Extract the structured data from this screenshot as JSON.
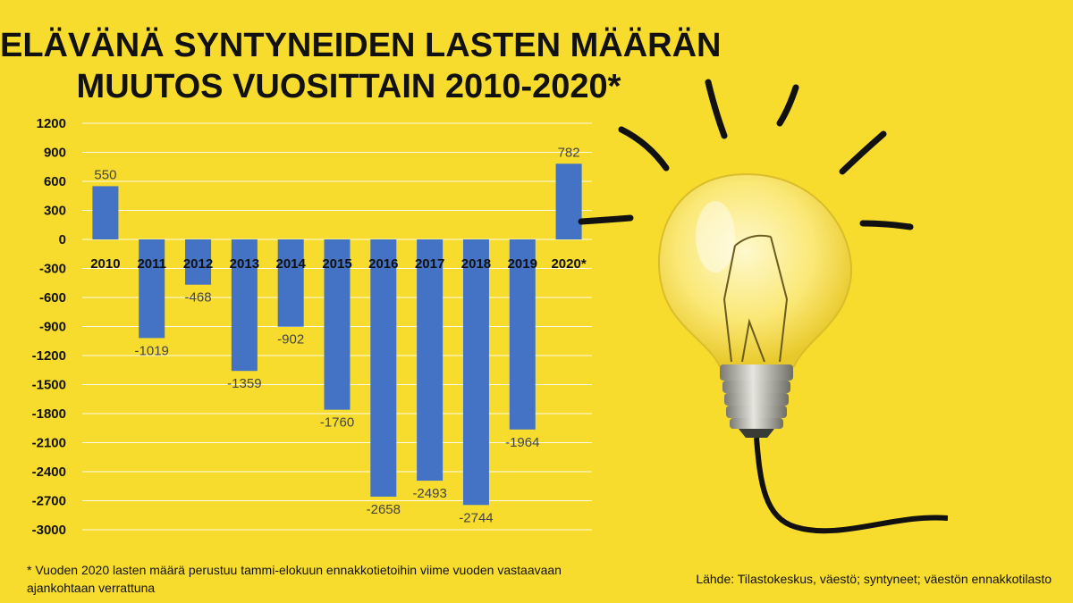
{
  "title": {
    "line1": "ELÄVÄNÄ SYNTYNEIDEN LASTEN MÄÄRÄN",
    "line2": "MUUTOS VUOSITTAIN 2010-2020*"
  },
  "chart_data": {
    "type": "bar",
    "categories": [
      "2010",
      "2011",
      "2012",
      "2013",
      "2014",
      "2015",
      "2016",
      "2017",
      "2018",
      "2019",
      "2020*"
    ],
    "values": [
      550,
      -1019,
      -468,
      -1359,
      -902,
      -1760,
      -2658,
      -2493,
      -2744,
      -1964,
      782
    ],
    "data_labels": [
      "550",
      "-1019",
      "-468",
      "-1359",
      "-902",
      "-1760",
      "-2658",
      "-2493",
      "-2744",
      "-1964",
      "782"
    ],
    "yticks": [
      "1200",
      "900",
      "600",
      "300",
      "0",
      "-300",
      "-600",
      "-900",
      "-1200",
      "-1500",
      "-1800",
      "-2100",
      "-2400",
      "-2700",
      "-3000"
    ],
    "ylim": [
      -3000,
      1200
    ],
    "grid": true,
    "bar_color": "#4472c4",
    "title": "ELÄVÄNÄ SYNTYNEIDEN LASTEN MÄÄRÄN MUUTOS VUOSITTAIN 2010-2020*",
    "xlabel": "",
    "ylabel": ""
  },
  "footnote": "* Vuoden 2020 lasten määrä perustuu tammi-elokuun ennakkotietoihin viime vuoden vastaavaan ajankohtaan verrattuna",
  "source": "Lähde: Tilastokeskus, väestö; syntyneet; väestön ennakkotilasto",
  "illustration": "light-bulb-icon",
  "colors": {
    "background": "#f7dc2d",
    "bar": "#4472c4",
    "text": "#111111"
  }
}
